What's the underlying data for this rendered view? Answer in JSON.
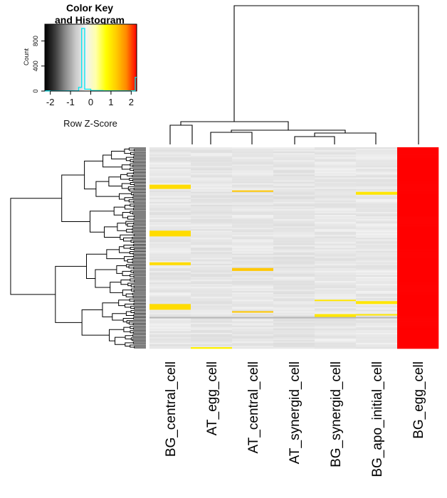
{
  "chart_data": {
    "type": "heatmap",
    "title": "",
    "columns": [
      "BG_central_cell",
      "AT_egg_cell",
      "AT_central_cell",
      "AT_synergid_cell",
      "BG_synergid_cell",
      "BG_apo_initial_cell",
      "BG_egg_cell"
    ],
    "row_count": 140,
    "value_scale": "Row Z-Score",
    "zlim": [
      -2.27,
      2.27
    ],
    "column_base_z": [
      -0.37,
      -0.39,
      -0.38,
      -0.4,
      -0.37,
      -0.36,
      2.27
    ],
    "highlights": [
      {
        "column": "BG_central_cell",
        "rows": [
          [
            26,
            29
          ],
          [
            58,
            62
          ],
          [
            80,
            82
          ],
          [
            109,
            113
          ]
        ],
        "z": 1.1
      },
      {
        "column": "AT_egg_cell",
        "rows": [
          [
            139,
            140
          ]
        ],
        "z": 0.9
      },
      {
        "column": "AT_central_cell",
        "rows": [
          [
            30,
            31
          ],
          [
            84,
            86
          ],
          [
            114,
            115
          ]
        ],
        "z": 1.3
      },
      {
        "column": "BG_synergid_cell",
        "rows": [
          [
            106,
            107
          ],
          [
            116,
            118
          ]
        ],
        "z": 1.0
      },
      {
        "column": "BG_apo_initial_cell",
        "rows": [
          [
            31,
            33
          ],
          [
            107,
            109
          ],
          [
            116,
            117
          ]
        ],
        "z": 1.0
      }
    ],
    "dark_rows": [
      {
        "rows": [
          [
            118,
            119
          ]
        ],
        "z": -0.9
      }
    ],
    "color_key": {
      "title_line1": "Color Key",
      "title_line2": "and Histogram",
      "xlabel": "Row Z-Score",
      "ylabel": "Count",
      "x_ticks": [
        -2,
        -1,
        0,
        1,
        2
      ],
      "y_ticks": [
        0,
        400,
        800
      ],
      "ylim": [
        0,
        1000
      ],
      "histogram": [
        {
          "z": -2.27,
          "count": 3
        },
        {
          "z": -1.8,
          "count": 2
        },
        {
          "z": -1.2,
          "count": 4
        },
        {
          "z": -0.6,
          "count": 60
        },
        {
          "z": -0.45,
          "count": 1000
        },
        {
          "z": -0.3,
          "count": 30
        },
        {
          "z": 0.0,
          "count": 8
        },
        {
          "z": 0.6,
          "count": 5
        },
        {
          "z": 1.2,
          "count": 5
        },
        {
          "z": 1.8,
          "count": 4
        },
        {
          "z": 2.2,
          "count": 220
        }
      ],
      "colors": [
        "#000000",
        "#3c3c3c",
        "#8a8a8a",
        "#c8c8c8",
        "#f2f2f2",
        "#ffffaa",
        "#ffff00",
        "#ffcc00",
        "#ff8800",
        "#ff0000"
      ]
    }
  }
}
